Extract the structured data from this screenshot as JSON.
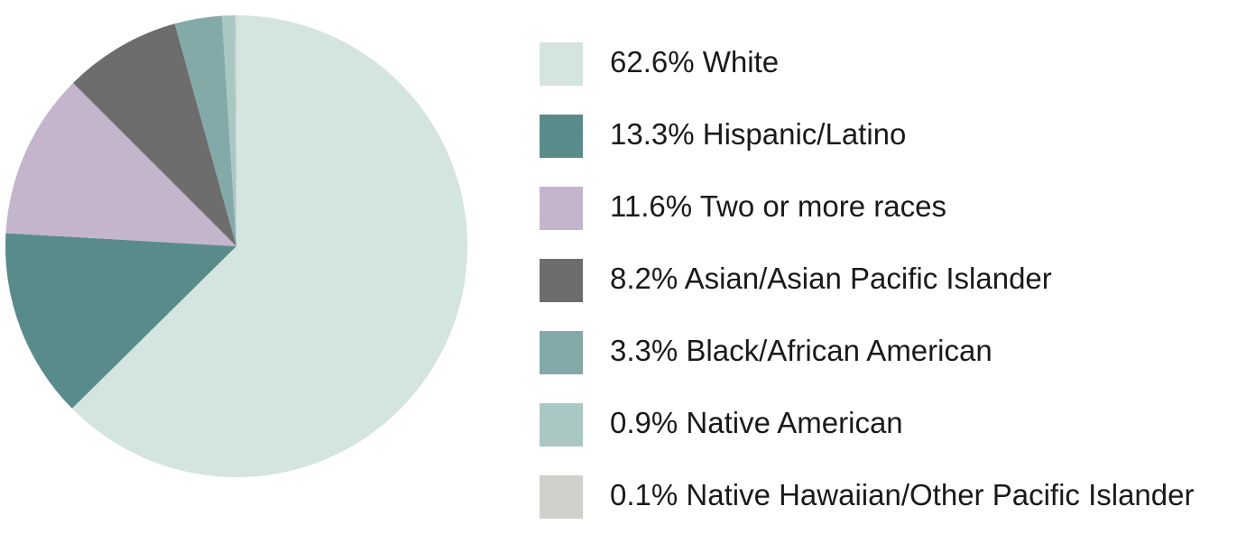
{
  "chart_data": {
    "type": "pie",
    "categories": [
      "White",
      "Hispanic/Latino",
      "Two or more races",
      "Asian/Asian Pacific Islander",
      "Black/African American",
      "Native American",
      "Native Hawaiian/Other Pacific Islander"
    ],
    "values": [
      62.6,
      13.3,
      11.6,
      8.2,
      3.3,
      0.9,
      0.1
    ],
    "value_labels": [
      "62.6%",
      "13.3%",
      "11.6%",
      "8.2%",
      "3.3%",
      "0.9%",
      "0.1%"
    ],
    "colors": [
      "#d4e4df",
      "#5a8b8b",
      "#c4b5cd",
      "#6d6d6d",
      "#83aaa9",
      "#aac8c3",
      "#d0d0cd"
    ],
    "legend": "right"
  }
}
